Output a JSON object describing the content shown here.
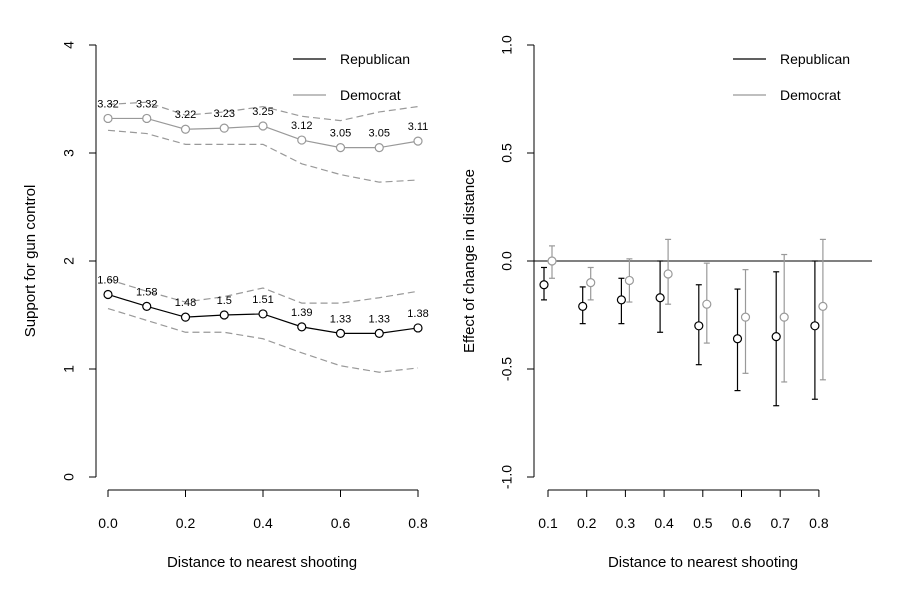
{
  "chart_data": [
    {
      "type": "line",
      "xlabel": "Distance to nearest shooting",
      "ylabel": "Support for gun control",
      "xlim": [
        0.0,
        0.8
      ],
      "ylim": [
        0,
        4
      ],
      "x_ticks": [
        "0.0",
        "0.2",
        "0.4",
        "0.6",
        "0.8"
      ],
      "y_ticks": [
        "0",
        "1",
        "2",
        "3",
        "4"
      ],
      "legend": [
        "Republican",
        "Democrat"
      ],
      "legend_position": "top-right",
      "x": [
        0.0,
        0.1,
        0.2,
        0.3,
        0.4,
        0.5,
        0.6,
        0.7,
        0.8
      ],
      "series": [
        {
          "name": "Republican",
          "color": "#000000",
          "values": [
            1.69,
            1.58,
            1.48,
            1.5,
            1.51,
            1.39,
            1.33,
            1.33,
            1.38
          ],
          "labels": [
            "1.69",
            "1.58",
            "1.48",
            "1.5",
            "1.51",
            "1.39",
            "1.33",
            "1.33",
            "1.38"
          ],
          "upper": [
            1.83,
            1.72,
            1.62,
            1.67,
            1.75,
            1.61,
            1.61,
            1.66,
            1.72
          ],
          "lower": [
            1.56,
            1.45,
            1.34,
            1.34,
            1.28,
            1.15,
            1.03,
            0.97,
            1.01
          ]
        },
        {
          "name": "Democrat",
          "color": "#999999",
          "values": [
            3.32,
            3.32,
            3.22,
            3.23,
            3.25,
            3.12,
            3.05,
            3.05,
            3.11
          ],
          "labels": [
            "3.32",
            "3.32",
            "3.22",
            "3.23",
            "3.25",
            "3.12",
            "3.05",
            "3.05",
            "3.11"
          ],
          "upper": [
            3.45,
            3.47,
            3.35,
            3.38,
            3.43,
            3.34,
            3.3,
            3.38,
            3.43
          ],
          "lower": [
            3.21,
            3.18,
            3.08,
            3.08,
            3.08,
            2.9,
            2.8,
            2.73,
            2.75
          ]
        }
      ],
      "ci_color": "#999999"
    },
    {
      "type": "scatter",
      "xlabel": "Distance to nearest shooting",
      "ylabel": "Effect of change in distance",
      "ylim": [
        -1.0,
        1.0
      ],
      "categories": [
        "0.1",
        "0.2",
        "0.3",
        "0.4",
        "0.5",
        "0.6",
        "0.7",
        "0.8"
      ],
      "y_ticks": [
        "-1.0",
        "-0.5",
        "0.0",
        "0.5",
        "1.0"
      ],
      "y_tick_values": [
        -1.0,
        -0.5,
        0.0,
        0.5,
        1.0
      ],
      "reference_line": 0.0,
      "legend": [
        "Republican",
        "Democrat"
      ],
      "legend_position": "top-right",
      "series": [
        {
          "name": "Republican",
          "color": "#000000",
          "values": [
            -0.11,
            -0.21,
            -0.18,
            -0.17,
            -0.3,
            -0.36,
            -0.35,
            -0.3
          ],
          "upper": [
            -0.03,
            -0.12,
            -0.08,
            0.0,
            -0.11,
            -0.13,
            -0.05,
            0.0
          ],
          "lower": [
            -0.18,
            -0.29,
            -0.29,
            -0.33,
            -0.48,
            -0.6,
            -0.67,
            -0.64
          ]
        },
        {
          "name": "Democrat",
          "color": "#999999",
          "values": [
            0.0,
            -0.1,
            -0.09,
            -0.06,
            -0.2,
            -0.26,
            -0.26,
            -0.21
          ],
          "upper": [
            0.07,
            -0.03,
            0.01,
            0.1,
            -0.01,
            -0.04,
            0.03,
            0.1
          ],
          "lower": [
            -0.08,
            -0.18,
            -0.19,
            -0.2,
            -0.38,
            -0.52,
            -0.56,
            -0.55
          ]
        }
      ]
    }
  ]
}
